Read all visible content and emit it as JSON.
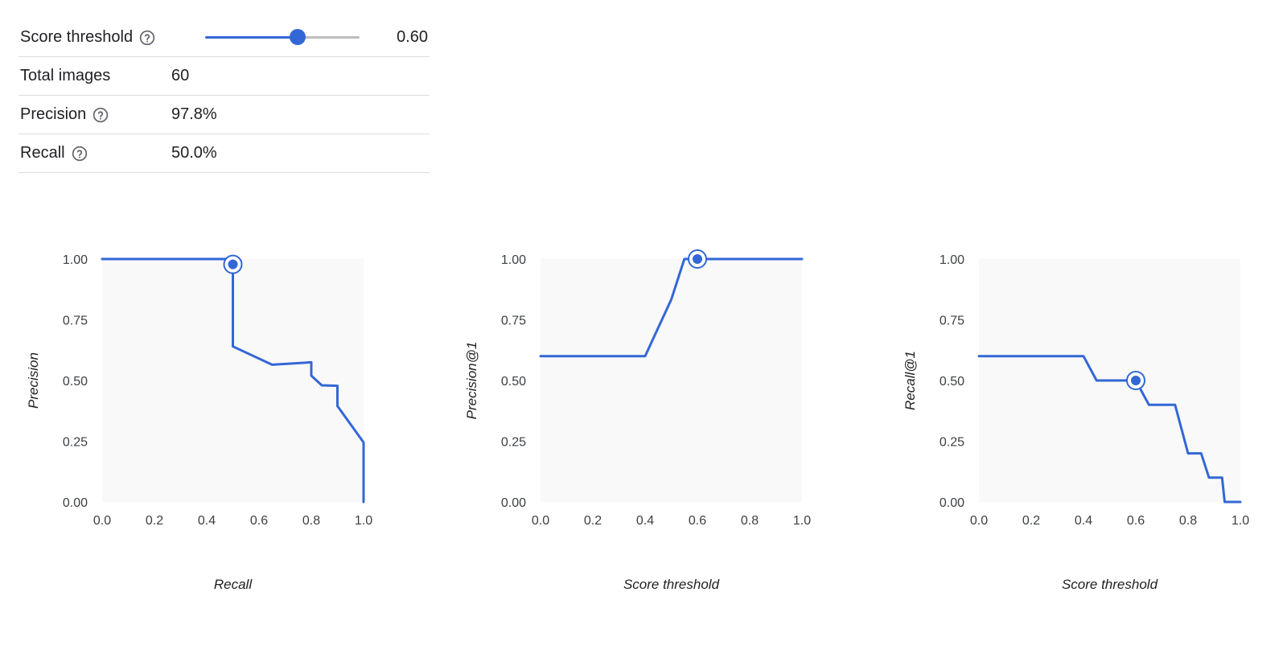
{
  "metrics": {
    "score_threshold": {
      "label": "Score threshold",
      "value": "0.60",
      "fraction": 0.6
    },
    "total_images": {
      "label": "Total images",
      "value": "60"
    },
    "precision": {
      "label": "Precision",
      "value": "97.8%"
    },
    "recall": {
      "label": "Recall",
      "value": "50.0%"
    }
  },
  "icons": {
    "help": "help-circle-icon"
  },
  "colors": {
    "accent": "#3367d6",
    "plot_bg": "#f9f9f9"
  },
  "chart_data": [
    {
      "type": "line",
      "xlabel": "Recall",
      "ylabel": "Precision",
      "xlim": [
        0,
        1
      ],
      "ylim": [
        0,
        1
      ],
      "xticks": [
        "0.0",
        "0.2",
        "0.4",
        "0.6",
        "0.8",
        "1.0"
      ],
      "yticks": [
        "0.00",
        "0.25",
        "0.50",
        "0.75",
        "1.00"
      ],
      "x": [
        0.0,
        0.5,
        0.5,
        0.65,
        0.8,
        0.8,
        0.84,
        0.9,
        0.9,
        1.0,
        1.0
      ],
      "y": [
        1.0,
        1.0,
        0.64,
        0.565,
        0.575,
        0.52,
        0.48,
        0.478,
        0.395,
        0.245,
        0.0
      ],
      "highlight": {
        "x": 0.5,
        "y": 0.978
      }
    },
    {
      "type": "line",
      "xlabel": "Score threshold",
      "ylabel": "Precision@1",
      "xlim": [
        0,
        1
      ],
      "ylim": [
        0,
        1
      ],
      "xticks": [
        "0.0",
        "0.2",
        "0.4",
        "0.6",
        "0.8",
        "1.0"
      ],
      "yticks": [
        "0.00",
        "0.25",
        "0.50",
        "0.75",
        "1.00"
      ],
      "x": [
        0.0,
        0.4,
        0.5,
        0.55,
        0.6,
        1.0
      ],
      "y": [
        0.6,
        0.6,
        0.833,
        1.0,
        1.0,
        1.0
      ],
      "highlight": {
        "x": 0.6,
        "y": 1.0
      }
    },
    {
      "type": "line",
      "xlabel": "Score threshold",
      "ylabel": "Recall@1",
      "xlim": [
        0,
        1
      ],
      "ylim": [
        0,
        1
      ],
      "xticks": [
        "0.0",
        "0.2",
        "0.4",
        "0.6",
        "0.8",
        "1.0"
      ],
      "yticks": [
        "0.00",
        "0.25",
        "0.50",
        "0.75",
        "1.00"
      ],
      "x": [
        0.0,
        0.4,
        0.45,
        0.6,
        0.65,
        0.75,
        0.8,
        0.85,
        0.88,
        0.93,
        0.94,
        1.0
      ],
      "y": [
        0.6,
        0.6,
        0.5,
        0.5,
        0.4,
        0.4,
        0.2,
        0.2,
        0.1,
        0.1,
        0.0,
        0.0
      ],
      "highlight": {
        "x": 0.6,
        "y": 0.5
      }
    }
  ]
}
